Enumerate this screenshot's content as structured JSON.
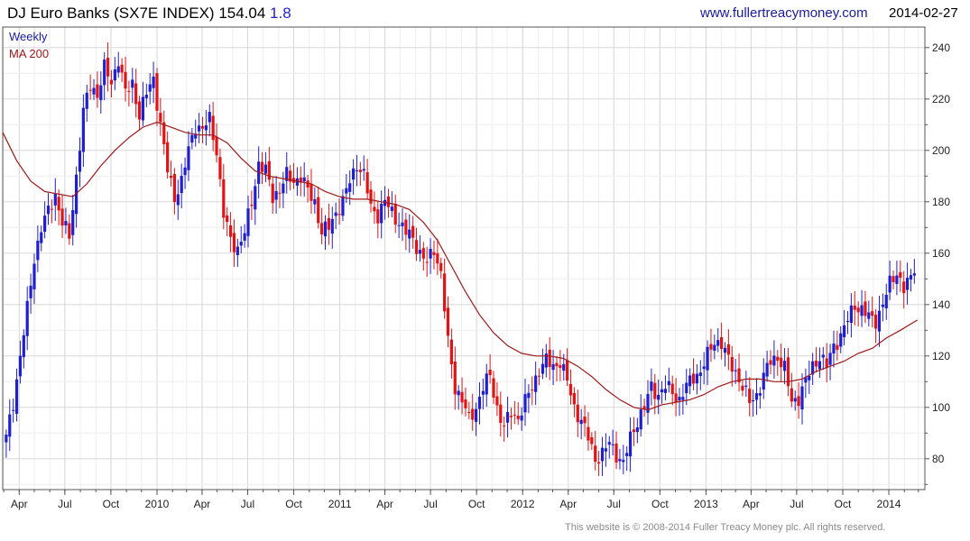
{
  "header": {
    "name": "DJ Euro Banks (SX7E INDEX)",
    "last": "154.04",
    "change": "1.8",
    "website": "www.fullertreacymoney.com",
    "date": "2014-02-27"
  },
  "footer": {
    "text": "This website is © 2008-2014 Fuller Treacy Money plc. All rights reserved."
  },
  "colors": {
    "up": "#1f1fcf",
    "down": "#e01414",
    "ma": "#a01818",
    "grid": "#d8d8d8",
    "legend_weekly": "#1a1aa6",
    "legend_ma": "#a01818"
  },
  "chart_data": {
    "type": "candlestick",
    "legend": [
      "Weekly",
      "MA 200"
    ],
    "legend_position": "top-left",
    "grid": true,
    "ylim": [
      68,
      248
    ],
    "xlim": [
      "2009-02-27",
      "2014-03-14"
    ],
    "y_ticks": [
      80,
      100,
      120,
      140,
      160,
      180,
      200,
      220,
      240
    ],
    "x_ticks": [
      {
        "label": "Apr",
        "date": "2009-04-01"
      },
      {
        "label": "Jul",
        "date": "2009-07-01"
      },
      {
        "label": "Oct",
        "date": "2009-10-01"
      },
      {
        "label": "2010",
        "date": "2010-01-01"
      },
      {
        "label": "Apr",
        "date": "2010-04-01"
      },
      {
        "label": "Jul",
        "date": "2010-07-01"
      },
      {
        "label": "Oct",
        "date": "2010-10-01"
      },
      {
        "label": "2011",
        "date": "2011-01-01"
      },
      {
        "label": "Apr",
        "date": "2011-04-01"
      },
      {
        "label": "Jul",
        "date": "2011-07-01"
      },
      {
        "label": "Oct",
        "date": "2011-10-01"
      },
      {
        "label": "2012",
        "date": "2012-01-01"
      },
      {
        "label": "Apr",
        "date": "2012-04-01"
      },
      {
        "label": "Jul",
        "date": "2012-07-01"
      },
      {
        "label": "Oct",
        "date": "2012-10-01"
      },
      {
        "label": "2013",
        "date": "2013-01-01"
      },
      {
        "label": "Apr",
        "date": "2013-04-01"
      },
      {
        "label": "Jul",
        "date": "2013-07-01"
      },
      {
        "label": "Oct",
        "date": "2013-10-01"
      },
      {
        "label": "2014",
        "date": "2014-01-01"
      }
    ],
    "candle_anchors": [
      [
        "2009-03-06",
        88
      ],
      [
        "2009-03-20",
        102
      ],
      [
        "2009-04-03",
        120
      ],
      [
        "2009-04-17",
        138
      ],
      [
        "2009-05-01",
        158
      ],
      [
        "2009-05-15",
        170
      ],
      [
        "2009-05-29",
        176
      ],
      [
        "2009-06-12",
        183
      ],
      [
        "2009-06-26",
        172
      ],
      [
        "2009-07-10",
        166
      ],
      [
        "2009-07-24",
        190
      ],
      [
        "2009-08-07",
        215
      ],
      [
        "2009-08-21",
        225
      ],
      [
        "2009-09-04",
        222
      ],
      [
        "2009-09-18",
        232
      ],
      [
        "2009-10-02",
        226
      ],
      [
        "2009-10-16",
        236
      ],
      [
        "2009-10-30",
        222
      ],
      [
        "2009-11-13",
        226
      ],
      [
        "2009-11-27",
        214
      ],
      [
        "2009-12-11",
        222
      ],
      [
        "2009-12-25",
        228
      ],
      [
        "2010-01-08",
        210
      ],
      [
        "2010-01-22",
        192
      ],
      [
        "2010-02-05",
        182
      ],
      [
        "2010-02-19",
        188
      ],
      [
        "2010-03-05",
        200
      ],
      [
        "2010-03-19",
        210
      ],
      [
        "2010-04-02",
        208
      ],
      [
        "2010-04-16",
        212
      ],
      [
        "2010-04-30",
        200
      ],
      [
        "2010-05-14",
        175
      ],
      [
        "2010-05-28",
        165
      ],
      [
        "2010-06-11",
        162
      ],
      [
        "2010-06-25",
        168
      ],
      [
        "2010-07-09",
        180
      ],
      [
        "2010-07-23",
        195
      ],
      [
        "2010-08-06",
        192
      ],
      [
        "2010-08-20",
        182
      ],
      [
        "2010-09-03",
        185
      ],
      [
        "2010-09-17",
        190
      ],
      [
        "2010-10-01",
        188
      ],
      [
        "2010-10-15",
        190
      ],
      [
        "2010-10-29",
        184
      ],
      [
        "2010-11-12",
        180
      ],
      [
        "2010-11-26",
        168
      ],
      [
        "2010-12-10",
        170
      ],
      [
        "2010-12-24",
        176
      ],
      [
        "2011-01-07",
        180
      ],
      [
        "2011-01-21",
        188
      ],
      [
        "2011-02-04",
        195
      ],
      [
        "2011-02-18",
        190
      ],
      [
        "2011-03-04",
        178
      ],
      [
        "2011-03-18",
        175
      ],
      [
        "2011-04-01",
        180
      ],
      [
        "2011-04-15",
        176
      ],
      [
        "2011-04-29",
        172
      ],
      [
        "2011-05-13",
        168
      ],
      [
        "2011-05-27",
        166
      ],
      [
        "2011-06-10",
        160
      ],
      [
        "2011-06-24",
        156
      ],
      [
        "2011-07-08",
        162
      ],
      [
        "2011-07-22",
        152
      ],
      [
        "2011-08-05",
        125
      ],
      [
        "2011-08-19",
        108
      ],
      [
        "2011-09-02",
        103
      ],
      [
        "2011-09-16",
        95
      ],
      [
        "2011-09-30",
        100
      ],
      [
        "2011-10-14",
        108
      ],
      [
        "2011-10-28",
        112
      ],
      [
        "2011-11-11",
        100
      ],
      [
        "2011-11-25",
        92
      ],
      [
        "2011-12-09",
        98
      ],
      [
        "2011-12-23",
        96
      ],
      [
        "2012-01-06",
        102
      ],
      [
        "2012-01-20",
        108
      ],
      [
        "2012-02-03",
        115
      ],
      [
        "2012-02-17",
        118
      ],
      [
        "2012-03-02",
        116
      ],
      [
        "2012-03-16",
        118
      ],
      [
        "2012-03-30",
        110
      ],
      [
        "2012-04-13",
        100
      ],
      [
        "2012-04-27",
        95
      ],
      [
        "2012-05-11",
        88
      ],
      [
        "2012-05-25",
        80
      ],
      [
        "2012-06-08",
        82
      ],
      [
        "2012-06-22",
        86
      ],
      [
        "2012-07-06",
        82
      ],
      [
        "2012-07-20",
        78
      ],
      [
        "2012-08-03",
        88
      ],
      [
        "2012-08-17",
        95
      ],
      [
        "2012-08-31",
        100
      ],
      [
        "2012-09-14",
        108
      ],
      [
        "2012-09-28",
        105
      ],
      [
        "2012-10-12",
        108
      ],
      [
        "2012-10-26",
        106
      ],
      [
        "2012-11-09",
        103
      ],
      [
        "2012-11-23",
        108
      ],
      [
        "2012-12-07",
        112
      ],
      [
        "2012-12-21",
        114
      ],
      [
        "2013-01-04",
        120
      ],
      [
        "2013-01-18",
        126
      ],
      [
        "2013-02-01",
        125
      ],
      [
        "2013-02-15",
        118
      ],
      [
        "2013-03-01",
        114
      ],
      [
        "2013-03-15",
        108
      ],
      [
        "2013-03-29",
        102
      ],
      [
        "2013-04-12",
        105
      ],
      [
        "2013-04-26",
        112
      ],
      [
        "2013-05-10",
        118
      ],
      [
        "2013-05-24",
        120
      ],
      [
        "2013-06-07",
        115
      ],
      [
        "2013-06-21",
        102
      ],
      [
        "2013-07-05",
        104
      ],
      [
        "2013-07-19",
        110
      ],
      [
        "2013-08-02",
        116
      ],
      [
        "2013-08-16",
        120
      ],
      [
        "2013-08-30",
        116
      ],
      [
        "2013-09-13",
        124
      ],
      [
        "2013-09-27",
        128
      ],
      [
        "2013-10-11",
        134
      ],
      [
        "2013-10-25",
        140
      ],
      [
        "2013-11-08",
        138
      ],
      [
        "2013-11-22",
        135
      ],
      [
        "2013-12-06",
        134
      ],
      [
        "2013-12-20",
        140
      ],
      [
        "2014-01-03",
        148
      ],
      [
        "2014-01-17",
        153
      ],
      [
        "2014-01-31",
        146
      ],
      [
        "2014-02-14",
        150
      ],
      [
        "2014-02-27",
        154.04
      ]
    ],
    "ma200": [
      [
        "2009-02-27",
        207
      ],
      [
        "2009-03-27",
        196
      ],
      [
        "2009-04-24",
        188
      ],
      [
        "2009-05-22",
        184
      ],
      [
        "2009-06-19",
        183
      ],
      [
        "2009-07-17",
        182
      ],
      [
        "2009-08-14",
        187
      ],
      [
        "2009-09-11",
        194
      ],
      [
        "2009-10-09",
        200
      ],
      [
        "2009-11-06",
        205
      ],
      [
        "2009-12-04",
        209
      ],
      [
        "2010-01-01",
        211
      ],
      [
        "2010-01-29",
        209
      ],
      [
        "2010-02-26",
        207
      ],
      [
        "2010-03-26",
        206
      ],
      [
        "2010-04-23",
        206
      ],
      [
        "2010-05-21",
        203
      ],
      [
        "2010-06-18",
        197
      ],
      [
        "2010-07-16",
        192
      ],
      [
        "2010-08-13",
        190
      ],
      [
        "2010-09-10",
        189
      ],
      [
        "2010-10-08",
        188
      ],
      [
        "2010-11-05",
        187
      ],
      [
        "2010-12-03",
        184
      ],
      [
        "2010-12-31",
        182
      ],
      [
        "2011-01-28",
        181
      ],
      [
        "2011-02-25",
        181
      ],
      [
        "2011-03-25",
        180
      ],
      [
        "2011-04-22",
        179
      ],
      [
        "2011-05-20",
        177
      ],
      [
        "2011-06-17",
        172
      ],
      [
        "2011-07-15",
        165
      ],
      [
        "2011-08-12",
        155
      ],
      [
        "2011-09-09",
        145
      ],
      [
        "2011-10-07",
        136
      ],
      [
        "2011-11-04",
        129
      ],
      [
        "2011-12-02",
        124
      ],
      [
        "2011-12-30",
        121
      ],
      [
        "2012-01-27",
        120
      ],
      [
        "2012-02-24",
        120
      ],
      [
        "2012-03-23",
        119
      ],
      [
        "2012-04-20",
        116
      ],
      [
        "2012-05-18",
        112
      ],
      [
        "2012-06-15",
        107
      ],
      [
        "2012-07-13",
        103
      ],
      [
        "2012-08-10",
        100
      ],
      [
        "2012-09-07",
        99
      ],
      [
        "2012-10-05",
        101
      ],
      [
        "2012-11-02",
        102
      ],
      [
        "2012-11-30",
        103
      ],
      [
        "2012-12-28",
        105
      ],
      [
        "2013-01-25",
        108
      ],
      [
        "2013-02-22",
        110
      ],
      [
        "2013-03-22",
        111
      ],
      [
        "2013-04-19",
        111
      ],
      [
        "2013-05-17",
        110
      ],
      [
        "2013-06-14",
        110
      ],
      [
        "2013-07-12",
        111
      ],
      [
        "2013-08-09",
        114
      ],
      [
        "2013-09-06",
        116
      ],
      [
        "2013-10-04",
        118
      ],
      [
        "2013-11-01",
        121
      ],
      [
        "2013-11-29",
        123
      ],
      [
        "2013-12-27",
        127
      ],
      [
        "2014-01-24",
        130
      ],
      [
        "2014-02-27",
        134
      ]
    ]
  }
}
